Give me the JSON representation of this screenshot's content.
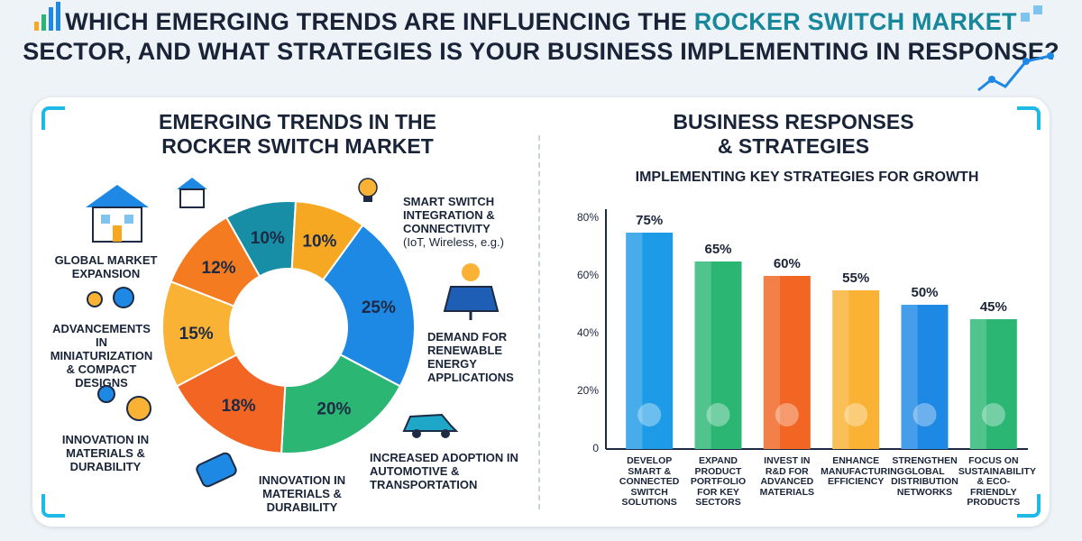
{
  "header": {
    "line1_pre": "WHICH EMERGING TRENDS ARE INFLUENCING THE",
    "line1_accent": "ROCKER SWITCH MARKET",
    "line2": "SECTOR, AND WHAT STRATEGIES IS YOUR BUSINESS IMPLEMENTING IN RESPONSE?"
  },
  "left": {
    "title_line1": "EMERGING TRENDS IN THE",
    "title_line2": "ROCKER SWITCH MARKET"
  },
  "right": {
    "title_line1": "BUSINESS RESPONSES",
    "title_line2": "& STRATEGIES",
    "subtitle": "IMPLEMENTING KEY STRATEGIES FOR GROWTH"
  },
  "colors": {
    "blue": "#1e88e5",
    "green": "#2bb673",
    "orange_red": "#f26522",
    "yellow": "#f9b233",
    "orange": "#f47b20",
    "teal": "#178ea6",
    "gold": "#f7a823"
  },
  "chart_data": [
    {
      "type": "pie",
      "style": "donut",
      "slices": [
        {
          "label": "SMART SWITCH INTEGRATION & CONNECTIVITY",
          "note": "(IoT, Wireless, e.g.)",
          "value": 25,
          "display": "25%",
          "color": "#1e88e5"
        },
        {
          "label": "DEMAND FOR RENEWABLE ENERGY APPLICATIONS",
          "value": 20,
          "display": "20%",
          "color": "#2bb673"
        },
        {
          "label": "INCREASED ADOPTION IN AUTOMOTIVE & TRANSPORTATION",
          "value": 18,
          "display": "18%",
          "color": "#f26522"
        },
        {
          "label": "INNOVATION IN MATERIALS & DURABILITY",
          "value": 15,
          "display": "15%",
          "color": "#f9b233"
        },
        {
          "label": "ADVANCEMENTS IN MINIATURIZATION & COMPACT DESIGNS",
          "value": 12,
          "display": "12%",
          "color": "#f47b20"
        },
        {
          "label": "GLOBAL MARKET EXPANSION",
          "value": 10,
          "display": "10%",
          "color": "#178ea6"
        },
        {
          "label": "",
          "value": 10,
          "display": "10%",
          "color": "#f7a823"
        }
      ],
      "extra_label": "INNOVATION IN MATERIALS & DURABILITY"
    },
    {
      "type": "bar",
      "categories": [
        "DEVELOP SMART & CONNECTED SWITCH SOLUTIONS",
        "EXPAND PRODUCT PORTFOLIO FOR KEY SECTORS",
        "INVEST IN R&D FOR ADVANCED MATERIALS",
        "ENHANCE MANUFACTURING EFFICIENCY",
        "STRENGTHEN GLOBAL DISTRIBUTION NETWORKS",
        "FOCUS ON SUSTAINABILITY & ECO-FRIENDLY PRODUCTS"
      ],
      "category_lines": [
        [
          "DEVELOP",
          "SMART &",
          "CONNECTED",
          "SWITCH",
          "SOLUTIONS"
        ],
        [
          "EXPAND",
          "PRODUCT",
          "PORTFOLIO",
          "FOR KEY",
          "SECTORS"
        ],
        [
          "INVEST IN",
          "R&D FOR",
          "ADVANCED",
          "MATERIALS"
        ],
        [
          "ENHANCE",
          "MANUFACTURING",
          "EFFICIENCY"
        ],
        [
          "STRENGTHEN",
          "GLOBAL",
          "DISTRIBUTION",
          "NETWORKS"
        ],
        [
          "FOCUS ON",
          "SUSTAINABILITY",
          "& ECO-FRIENDLY",
          "PRODUCTS"
        ]
      ],
      "values": [
        75,
        65,
        60,
        55,
        50,
        45
      ],
      "value_labels": [
        "75%",
        "65%",
        "60%",
        "55%",
        "50%",
        "45%"
      ],
      "bar_colors": [
        "#1e9be6",
        "#2bb673",
        "#f26522",
        "#f9b233",
        "#1e88e5",
        "#2bb673"
      ],
      "y_ticks": [
        "0",
        "20%",
        "40%",
        "60%",
        "80%"
      ],
      "y_tick_values": [
        0,
        20,
        40,
        60,
        80
      ],
      "ylim": [
        0,
        85
      ],
      "grid": false
    }
  ]
}
